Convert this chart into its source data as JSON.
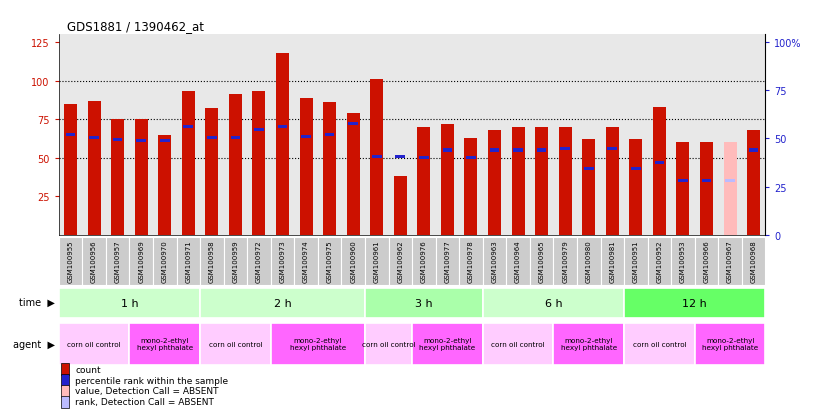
{
  "title": "GDS1881 / 1390462_at",
  "samples": [
    "GSM100955",
    "GSM100956",
    "GSM100957",
    "GSM100969",
    "GSM100970",
    "GSM100971",
    "GSM100958",
    "GSM100959",
    "GSM100972",
    "GSM100973",
    "GSM100974",
    "GSM100975",
    "GSM100960",
    "GSM100961",
    "GSM100962",
    "GSM100976",
    "GSM100977",
    "GSM100978",
    "GSM100963",
    "GSM100964",
    "GSM100965",
    "GSM100979",
    "GSM100980",
    "GSM100981",
    "GSM100951",
    "GSM100952",
    "GSM100953",
    "GSM100966",
    "GSM100967",
    "GSM100968"
  ],
  "count_values": [
    85,
    87,
    75,
    75,
    65,
    93,
    82,
    91,
    93,
    118,
    89,
    86,
    79,
    101,
    38,
    70,
    72,
    63,
    68,
    70,
    70,
    70,
    62,
    70,
    62,
    83,
    60,
    60,
    60,
    68
  ],
  "rank_values": [
    65,
    63,
    62,
    61,
    61,
    70,
    63,
    63,
    68,
    70,
    64,
    65,
    72,
    51,
    51,
    50,
    55,
    50,
    55,
    55,
    55,
    56,
    43,
    56,
    43,
    47,
    35,
    35,
    35,
    55
  ],
  "absent_count": [
    false,
    false,
    false,
    false,
    false,
    false,
    false,
    false,
    false,
    false,
    false,
    false,
    false,
    false,
    false,
    false,
    false,
    false,
    false,
    false,
    false,
    false,
    false,
    false,
    false,
    false,
    false,
    false,
    true,
    false
  ],
  "absent_rank": [
    false,
    false,
    false,
    false,
    false,
    false,
    false,
    false,
    false,
    false,
    false,
    false,
    false,
    false,
    false,
    false,
    false,
    false,
    false,
    false,
    false,
    false,
    false,
    false,
    false,
    false,
    false,
    false,
    true,
    false
  ],
  "time_groups": [
    {
      "label": "1 h",
      "start": 0,
      "end": 6,
      "color": "#ccffcc"
    },
    {
      "label": "2 h",
      "start": 6,
      "end": 13,
      "color": "#ccffcc"
    },
    {
      "label": "3 h",
      "start": 13,
      "end": 18,
      "color": "#aaffaa"
    },
    {
      "label": "6 h",
      "start": 18,
      "end": 24,
      "color": "#ccffcc"
    },
    {
      "label": "12 h",
      "start": 24,
      "end": 30,
      "color": "#66ff66"
    }
  ],
  "agent_groups": [
    {
      "label": "corn oil control",
      "start": 0,
      "end": 3,
      "color": "#ffccff"
    },
    {
      "label": "mono-2-ethyl\nhexyl phthalate",
      "start": 3,
      "end": 6,
      "color": "#ff66ff"
    },
    {
      "label": "corn oil control",
      "start": 6,
      "end": 9,
      "color": "#ffccff"
    },
    {
      "label": "mono-2-ethyl\nhexyl phthalate",
      "start": 9,
      "end": 13,
      "color": "#ff66ff"
    },
    {
      "label": "corn oil control",
      "start": 13,
      "end": 15,
      "color": "#ffccff"
    },
    {
      "label": "mono-2-ethyl\nhexyl phthalate",
      "start": 15,
      "end": 18,
      "color": "#ff66ff"
    },
    {
      "label": "corn oil control",
      "start": 18,
      "end": 21,
      "color": "#ffccff"
    },
    {
      "label": "mono-2-ethyl\nhexyl phthalate",
      "start": 21,
      "end": 24,
      "color": "#ff66ff"
    },
    {
      "label": "corn oil control",
      "start": 24,
      "end": 27,
      "color": "#ffccff"
    },
    {
      "label": "mono-2-ethyl\nhexyl phthalate",
      "start": 27,
      "end": 30,
      "color": "#ff66ff"
    }
  ],
  "bar_color": "#cc1100",
  "rank_color": "#2222cc",
  "absent_bar_color": "#ffbbbb",
  "absent_rank_color": "#bbbbff",
  "bg_color": "#e8e8e8",
  "yticks_left": [
    25,
    50,
    75,
    100,
    125
  ],
  "yticks_right": [
    0,
    25,
    50,
    75,
    100
  ],
  "count_label": "count",
  "rank_label": "percentile rank within the sample",
  "absent_count_label": "value, Detection Call = ABSENT",
  "absent_rank_label": "rank, Detection Call = ABSENT"
}
